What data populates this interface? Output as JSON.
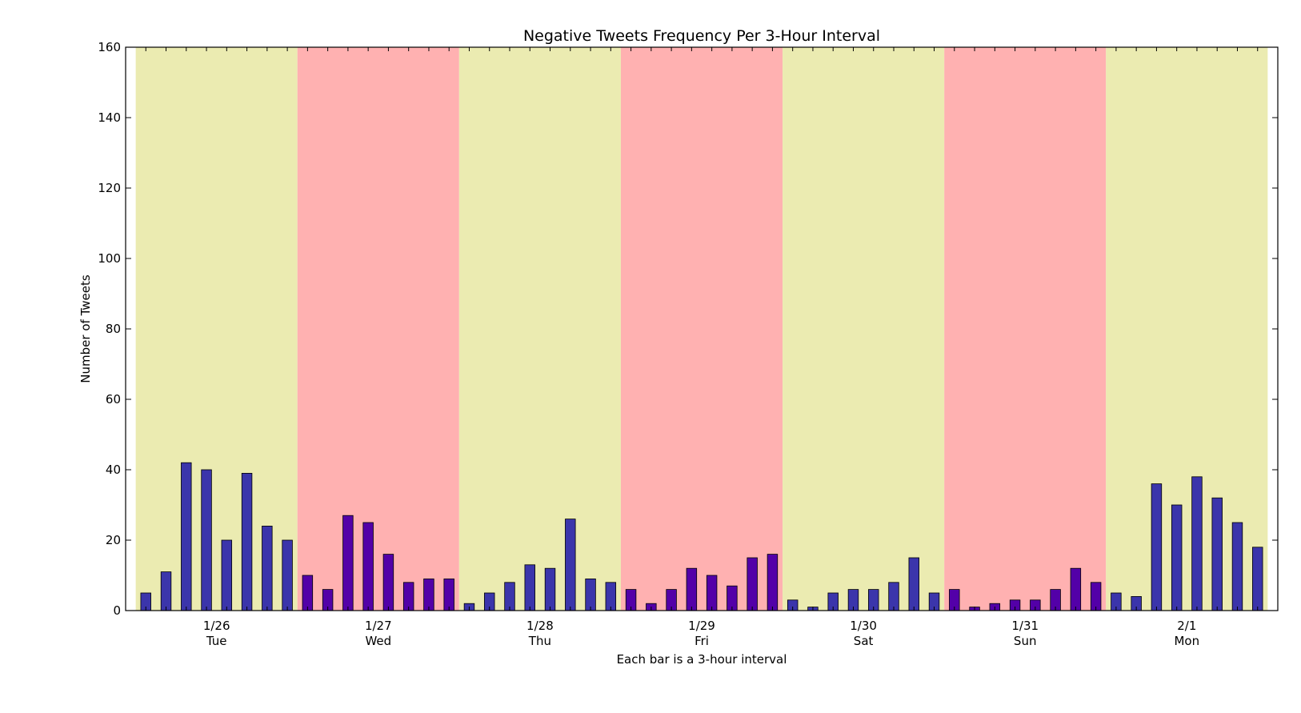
{
  "chart_data": {
    "type": "bar",
    "title": "Negative Tweets Frequency Per 3-Hour Interval",
    "xlabel": "Each bar is a 3-hour interval",
    "ylabel": "Number of Tweets",
    "ylim": [
      0,
      160
    ],
    "yticks": [
      0,
      20,
      40,
      60,
      80,
      100,
      120,
      140,
      160
    ],
    "grid": false,
    "days": [
      {
        "date": "1/26",
        "weekday": "Tue",
        "band_color": "#ebebb1",
        "bar_color": "#3b35ab",
        "values": [
          5,
          11,
          42,
          40,
          20,
          39,
          24,
          20
        ]
      },
      {
        "date": "1/27",
        "weekday": "Wed",
        "band_color": "#ffb1b1",
        "bar_color": "#5300a8",
        "values": [
          10,
          6,
          27,
          25,
          16,
          8,
          9,
          9
        ]
      },
      {
        "date": "1/28",
        "weekday": "Thu",
        "band_color": "#ebebb1",
        "bar_color": "#3b35ab",
        "values": [
          2,
          5,
          8,
          13,
          12,
          26,
          9,
          8
        ]
      },
      {
        "date": "1/29",
        "weekday": "Fri",
        "band_color": "#ffb1b1",
        "bar_color": "#5300a8",
        "values": [
          6,
          2,
          6,
          12,
          10,
          7,
          15,
          16
        ]
      },
      {
        "date": "1/30",
        "weekday": "Sat",
        "band_color": "#ebebb1",
        "bar_color": "#3b35ab",
        "values": [
          3,
          1,
          5,
          6,
          6,
          8,
          15,
          5
        ]
      },
      {
        "date": "1/31",
        "weekday": "Sun",
        "band_color": "#ffb1b1",
        "bar_color": "#5300a8",
        "values": [
          6,
          1,
          2,
          3,
          3,
          6,
          12,
          8
        ]
      },
      {
        "date": "2/1",
        "weekday": "Mon",
        "band_color": "#ebebb1",
        "bar_color": "#3b35ab",
        "values": [
          5,
          4,
          36,
          30,
          38,
          32,
          25,
          18
        ]
      }
    ]
  }
}
